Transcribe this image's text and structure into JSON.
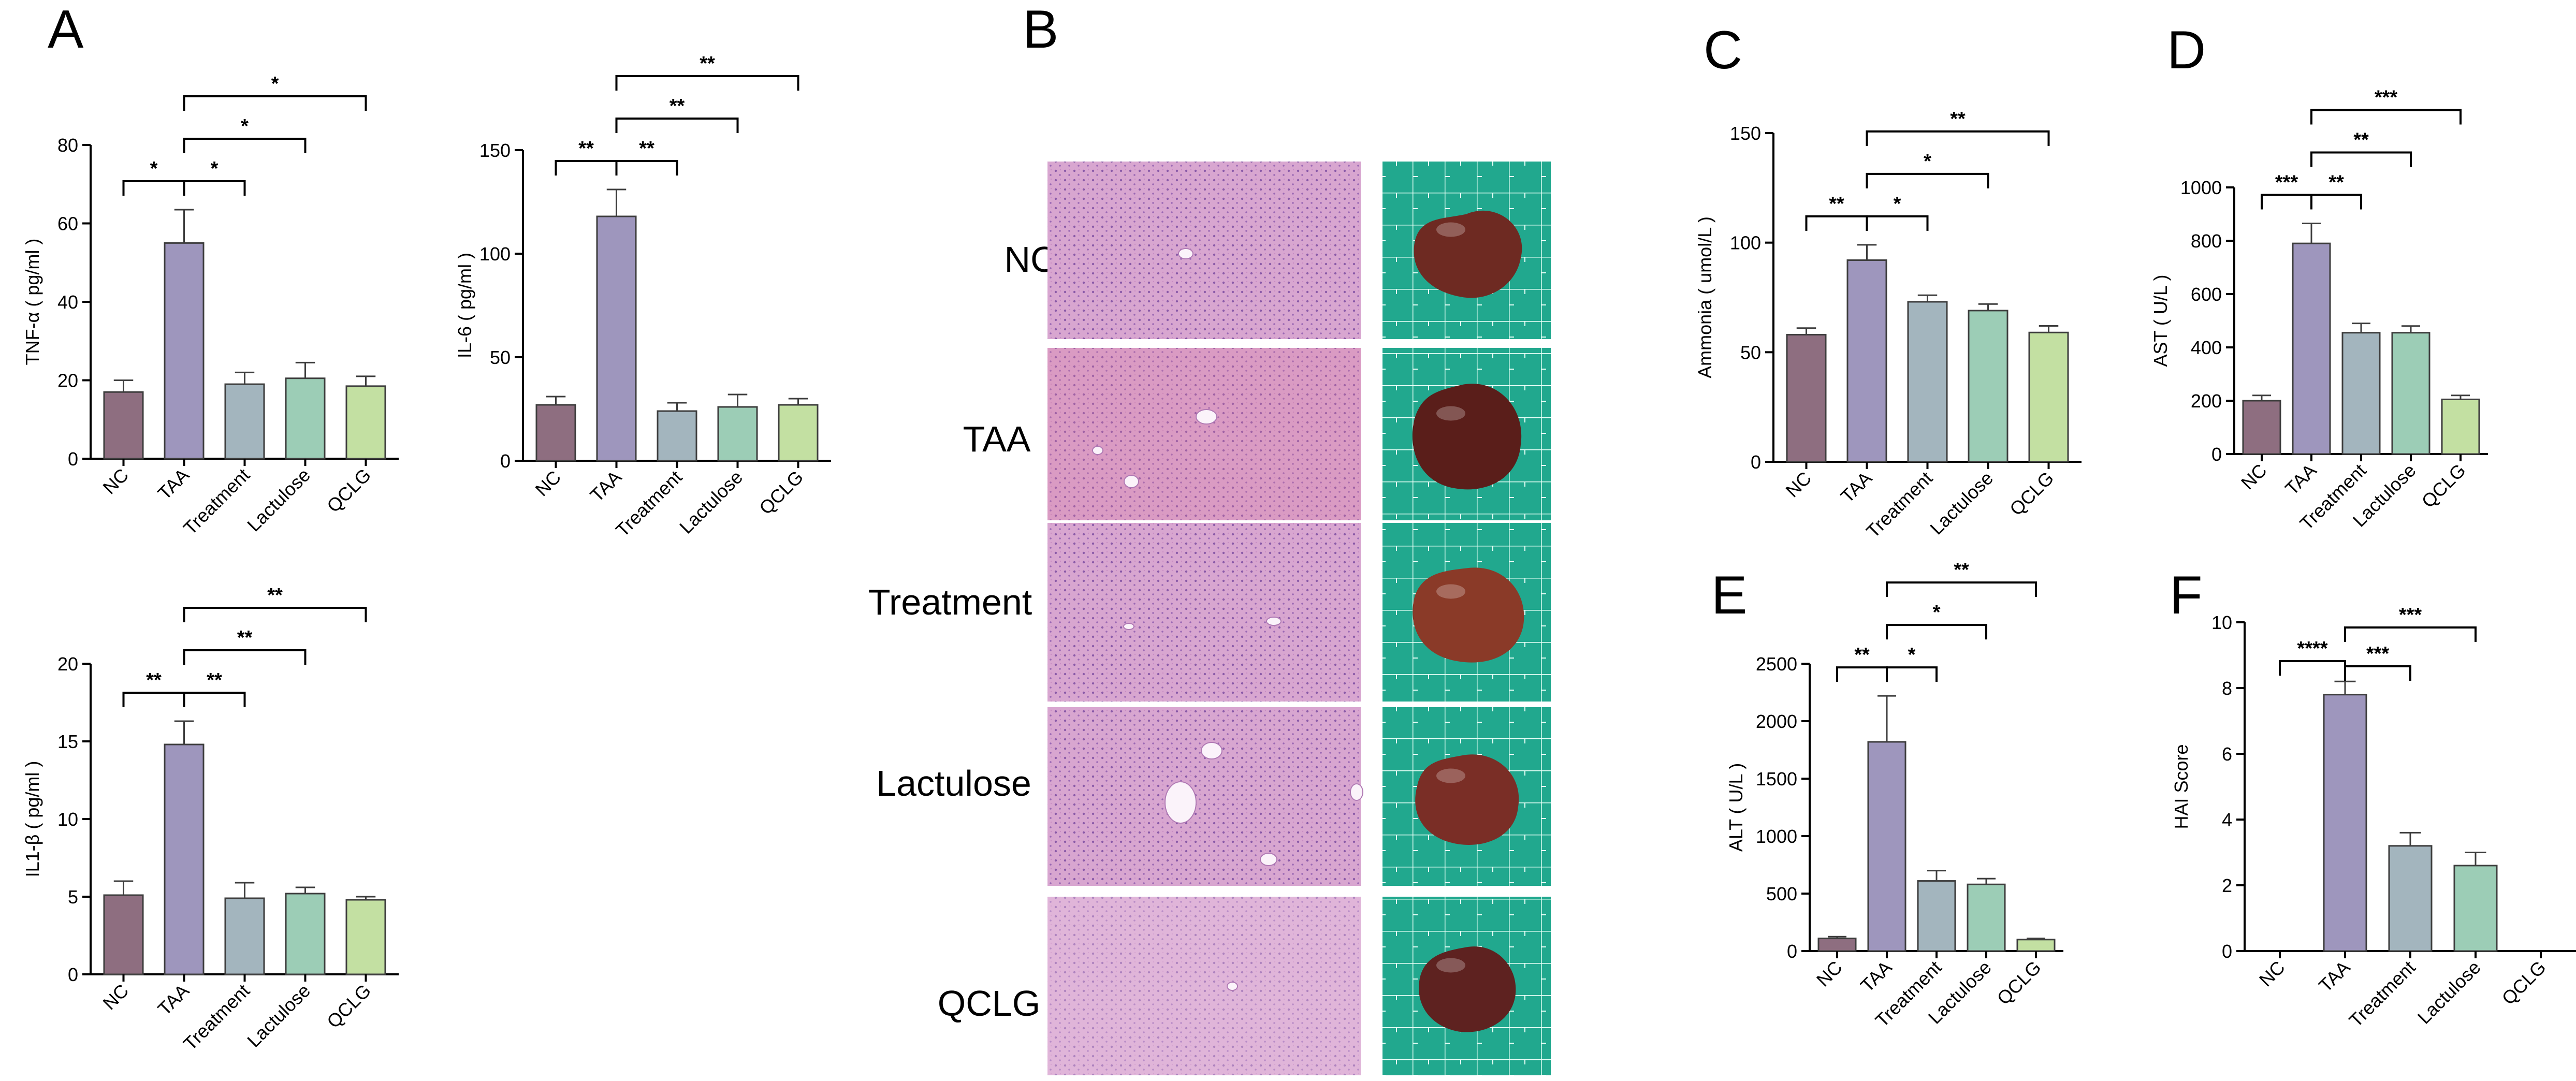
{
  "panel_letters": [
    "A",
    "B",
    "C",
    "D",
    "E",
    "F"
  ],
  "histology_rows": [
    "NC",
    "TAA",
    "Treatment",
    "Lactulose",
    "QCLG"
  ],
  "colors": {
    "NC": "#8e6e80",
    "TAA": "#9e96bd",
    "Treatment": "#a3b5be",
    "Lactulose": "#9ccdb6",
    "QCLG": "#c3e0a2",
    "tissue": "#d8a6d0",
    "board": "#21a88e",
    "liver": "#7a2822"
  },
  "chart_data": [
    {
      "id": "tnf",
      "type": "bar",
      "categories": [
        "NC",
        "TAA",
        "Treatment",
        "Lactulose",
        "QCLG"
      ],
      "values": [
        17,
        55,
        19,
        20.5,
        18.5
      ],
      "errors": [
        3,
        8.5,
        3,
        4,
        2.5
      ],
      "ylabel": "TNF-α ( pg/ml )",
      "ylim": [
        0,
        80
      ],
      "yticks": [
        0,
        20,
        40,
        60,
        80
      ],
      "significance": [
        {
          "from": 0,
          "to": 1,
          "label": "*"
        },
        {
          "from": 1,
          "to": 2,
          "label": "*"
        },
        {
          "from": 1,
          "to": 3,
          "label": "*"
        },
        {
          "from": 1,
          "to": 4,
          "label": "*"
        }
      ]
    },
    {
      "id": "il6",
      "type": "bar",
      "categories": [
        "NC",
        "TAA",
        "Treatment",
        "Lactulose",
        "QCLG"
      ],
      "values": [
        27,
        118,
        24,
        26,
        27
      ],
      "errors": [
        4,
        13,
        4,
        6,
        3
      ],
      "ylabel": "IL-6 ( pg/ml )",
      "ylim": [
        0,
        150
      ],
      "yticks": [
        0,
        50,
        100,
        150
      ],
      "significance": [
        {
          "from": 0,
          "to": 1,
          "label": "**"
        },
        {
          "from": 1,
          "to": 2,
          "label": "**"
        },
        {
          "from": 1,
          "to": 3,
          "label": "**"
        },
        {
          "from": 1,
          "to": 4,
          "label": "**"
        }
      ]
    },
    {
      "id": "il1b",
      "type": "bar",
      "categories": [
        "NC",
        "TAA",
        "Treatment",
        "Lactulose",
        "QCLG"
      ],
      "values": [
        5.1,
        14.8,
        4.9,
        5.2,
        4.8
      ],
      "errors": [
        0.9,
        1.5,
        1,
        0.4,
        0.2
      ],
      "ylabel": "IL1-β ( pg/ml )",
      "ylim": [
        0,
        20
      ],
      "yticks": [
        0,
        5,
        10,
        15,
        20
      ],
      "significance": [
        {
          "from": 0,
          "to": 1,
          "label": "**"
        },
        {
          "from": 1,
          "to": 2,
          "label": "**"
        },
        {
          "from": 1,
          "to": 3,
          "label": "**"
        },
        {
          "from": 1,
          "to": 4,
          "label": "**"
        }
      ]
    },
    {
      "id": "ammonia",
      "type": "bar",
      "categories": [
        "NC",
        "TAA",
        "Treatment",
        "Lactulose",
        "QCLG"
      ],
      "values": [
        58,
        92,
        73,
        69,
        59
      ],
      "errors": [
        3,
        7,
        3,
        3,
        3
      ],
      "ylabel": "Ammonia ( umol/L )",
      "ylim": [
        0,
        150
      ],
      "yticks": [
        0,
        50,
        100,
        150
      ],
      "significance": [
        {
          "from": 0,
          "to": 1,
          "label": "**"
        },
        {
          "from": 1,
          "to": 2,
          "label": "*"
        },
        {
          "from": 1,
          "to": 3,
          "label": "*"
        },
        {
          "from": 1,
          "to": 4,
          "label": "**"
        }
      ]
    },
    {
      "id": "ast",
      "type": "bar",
      "categories": [
        "NC",
        "TAA",
        "Treatment",
        "Lactulose",
        "QCLG"
      ],
      "values": [
        200,
        790,
        455,
        455,
        205
      ],
      "errors": [
        20,
        75,
        35,
        25,
        15
      ],
      "ylabel": "AST ( U/L )",
      "ylim": [
        0,
        1000
      ],
      "yticks": [
        0,
        200,
        400,
        600,
        800,
        1000
      ],
      "significance": [
        {
          "from": 0,
          "to": 1,
          "label": "***"
        },
        {
          "from": 1,
          "to": 2,
          "label": "**"
        },
        {
          "from": 1,
          "to": 3,
          "label": "**"
        },
        {
          "from": 1,
          "to": 4,
          "label": "***"
        }
      ]
    },
    {
      "id": "alt",
      "type": "bar",
      "categories": [
        "NC",
        "TAA",
        "Treatment",
        "Lactulose",
        "QCLG"
      ],
      "values": [
        110,
        1820,
        610,
        580,
        100
      ],
      "errors": [
        15,
        400,
        90,
        50,
        10
      ],
      "ylabel": "ALT ( U/L )",
      "ylim": [
        0,
        2500
      ],
      "yticks": [
        0,
        500,
        1000,
        1500,
        2000,
        2500
      ],
      "significance": [
        {
          "from": 0,
          "to": 1,
          "label": "**"
        },
        {
          "from": 1,
          "to": 2,
          "label": "*"
        },
        {
          "from": 1,
          "to": 3,
          "label": "*"
        },
        {
          "from": 1,
          "to": 4,
          "label": "**"
        }
      ]
    },
    {
      "id": "hai",
      "type": "bar",
      "categories": [
        "NC",
        "TAA",
        "Treatment",
        "Lactulose",
        "QCLG"
      ],
      "values": [
        0,
        7.8,
        3.2,
        2.6,
        0
      ],
      "errors": [
        0,
        0.4,
        0.4,
        0.4,
        0
      ],
      "ylabel": "HAI Score",
      "ylim": [
        0,
        10
      ],
      "yticks": [
        0,
        2,
        4,
        6,
        8,
        10
      ],
      "significance": [
        {
          "from": 0,
          "to": 1,
          "label": "****"
        },
        {
          "from": 1,
          "to": 2,
          "label": "***"
        },
        {
          "from": 1,
          "to": 3,
          "label": "***"
        }
      ]
    }
  ]
}
